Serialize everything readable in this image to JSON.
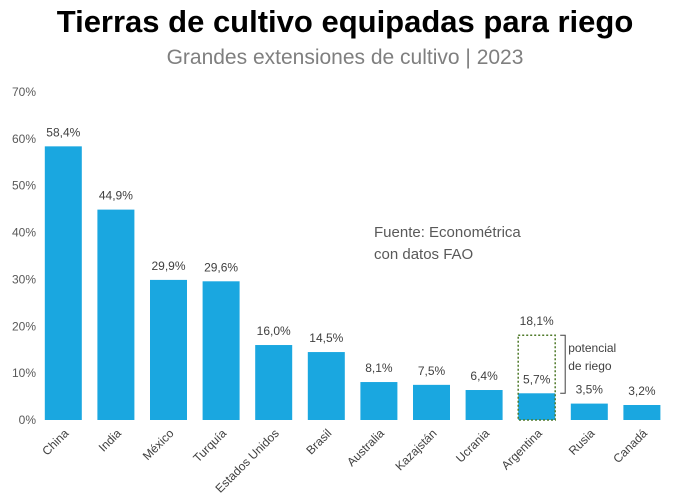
{
  "chart_data": {
    "type": "bar",
    "title": "Tierras de cultivo equipadas para riego",
    "subtitle": "Grandes extensiones de cultivo | 2023",
    "categories": [
      "China",
      "India",
      "México",
      "Turquía",
      "Estados Unidos",
      "Brasil",
      "Australia",
      "Kazajstán",
      "Ucrania",
      "Argentina",
      "Rusia",
      "Canadá"
    ],
    "values": [
      58.4,
      44.9,
      29.9,
      29.6,
      16.0,
      14.5,
      8.1,
      7.5,
      6.4,
      5.7,
      3.5,
      3.2
    ],
    "data_labels": [
      "58,4%",
      "44,9%",
      "29,9%",
      "29,6%",
      "16,0%",
      "14,5%",
      "8,1%",
      "7,5%",
      "6,4%",
      "5,7%",
      "3,5%",
      "3,2%"
    ],
    "ylim": [
      0,
      70
    ],
    "yticks": [
      0,
      10,
      20,
      30,
      40,
      50,
      60,
      70
    ],
    "ytick_labels": [
      "0%",
      "10%",
      "20%",
      "30%",
      "40%",
      "50%",
      "60%",
      "70%"
    ],
    "xlabel": "",
    "ylabel": "",
    "bar_color": "#1aa7e0",
    "grid": false,
    "potential": {
      "category": "Argentina",
      "value": 18.1,
      "label": "18,1%",
      "note_line1": "potencial",
      "note_line2": "de riego",
      "outline_color": "#4f7a2a"
    },
    "source_line1": "Fuente: Econométrica",
    "source_line2": "con datos FAO"
  }
}
